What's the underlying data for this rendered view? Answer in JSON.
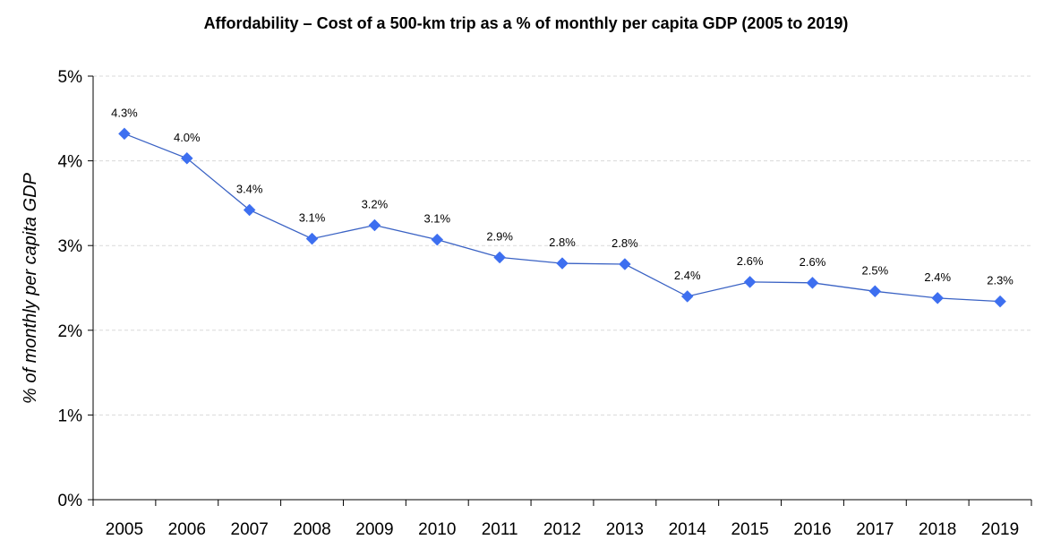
{
  "chart_data": {
    "type": "line",
    "title": "Affordability – Cost of a 500-km trip as a % of monthly per capita GDP (2005 to 2019)",
    "xlabel": "",
    "ylabel": "% of monthly per capita GDP",
    "categories": [
      "2005",
      "2006",
      "2007",
      "2008",
      "2009",
      "2010",
      "2011",
      "2012",
      "2013",
      "2014",
      "2015",
      "2016",
      "2017",
      "2018",
      "2019"
    ],
    "series": [
      {
        "values": [
          4.32,
          4.03,
          3.42,
          3.08,
          3.24,
          3.07,
          2.86,
          2.79,
          2.78,
          2.4,
          2.57,
          2.56,
          2.46,
          2.38,
          2.34
        ],
        "labels": [
          "4.3%",
          "4.0%",
          "3.4%",
          "3.1%",
          "3.2%",
          "3.1%",
          "2.9%",
          "2.8%",
          "2.8%",
          "2.4%",
          "2.6%",
          "2.6%",
          "2.5%",
          "2.4%",
          "2.3%"
        ]
      }
    ],
    "ylim": [
      0,
      5
    ],
    "yticks": [
      0,
      1,
      2,
      3,
      4,
      5
    ],
    "ytick_labels": [
      "0%",
      "1%",
      "2%",
      "3%",
      "4%",
      "5%"
    ],
    "grid": "horizontal-dashed",
    "legend": "none",
    "colors": {
      "line": "#3a62c4",
      "marker": "#3d6ff0",
      "axis": "#000000",
      "grid": "#d9d9d9"
    },
    "marker": "diamond"
  }
}
